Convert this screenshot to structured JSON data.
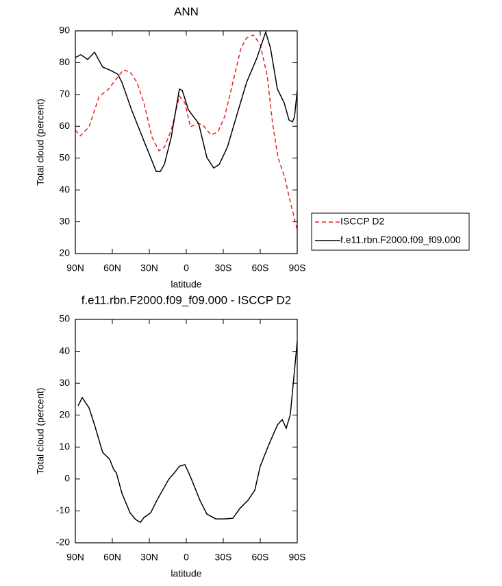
{
  "chart_data": [
    {
      "type": "line",
      "title": "ANN",
      "xlabel": "latitude",
      "ylabel": "Total cloud (percent)",
      "xlim": [
        90,
        -90
      ],
      "ylim": [
        20,
        90
      ],
      "xticks": [
        {
          "value": 90,
          "label": "90N"
        },
        {
          "value": 60,
          "label": "60N"
        },
        {
          "value": 30,
          "label": "30N"
        },
        0,
        {
          "value": -30,
          "label": "30S"
        },
        {
          "value": -60,
          "label": "60S"
        },
        {
          "value": -90,
          "label": "90S"
        }
      ],
      "yticks": [
        20,
        30,
        40,
        50,
        60,
        70,
        80,
        90
      ],
      "legend": "outside-right",
      "series": [
        {
          "name": "ISCCP D2",
          "color": "#e8201e",
          "line_style": "dashed",
          "x": [
            90,
            86.1,
            78.9,
            70.6,
            63.9,
            56.7,
            51.1,
            45.6,
            40,
            34.4,
            27.8,
            22.2,
            17.8,
            12.2,
            5.6,
            1.1,
            -3.3,
            -8.9,
            -13.3,
            -20,
            -25.6,
            -31.1,
            -37.8,
            -44.4,
            -48.9,
            -54.4,
            -60,
            -65.6,
            -70,
            -74.4,
            -80,
            -84.4,
            -90
          ],
          "values": [
            58.8,
            57,
            59.8,
            69.5,
            71.3,
            74.9,
            77.7,
            77.1,
            73.8,
            67.4,
            56.6,
            52.3,
            53.4,
            58.8,
            69.5,
            67.4,
            59.8,
            60.9,
            60.5,
            57.3,
            58.2,
            63,
            73.8,
            84.6,
            87.8,
            88.7,
            85.7,
            76,
            60.9,
            50.2,
            43.7,
            36.2,
            27.5
          ]
        },
        {
          "name": "f.e11.rbn.F2000.f09_f09.000",
          "color": "#000000",
          "line_style": "solid",
          "x": [
            90,
            85.6,
            80,
            74.4,
            67.8,
            62.2,
            55.6,
            52.2,
            44.4,
            35.6,
            28.9,
            24.4,
            21.1,
            17.8,
            12.2,
            5.6,
            3.3,
            -1.7,
            -10,
            -16.7,
            -22.2,
            -26.7,
            -33.3,
            -40.6,
            -48.9,
            -57.2,
            -62.8,
            -64.4,
            -68.3,
            -73.9,
            -79.4,
            -83.3,
            -86.1,
            -87.8,
            -90
          ],
          "values": [
            81.6,
            82.5,
            81,
            83.3,
            78.6,
            77.7,
            76.4,
            73.8,
            65.2,
            56.6,
            50.2,
            45.8,
            45.8,
            48,
            56.6,
            71.7,
            71.3,
            65.2,
            60.9,
            50.2,
            46.9,
            48,
            53.4,
            63,
            73.8,
            81.4,
            87.8,
            89.6,
            84.6,
            71.7,
            67.4,
            62,
            61.4,
            63,
            71.3
          ]
        }
      ]
    },
    {
      "type": "line",
      "title": "f.e11.rbn.F2000.f09_f09.000 - ISCCP D2",
      "xlabel": "latitude",
      "ylabel": "Total cloud (percent)",
      "xlim": [
        90,
        -90
      ],
      "ylim": [
        -20,
        50
      ],
      "xticks": [
        {
          "value": 90,
          "label": "90N"
        },
        {
          "value": 60,
          "label": "60N"
        },
        {
          "value": 30,
          "label": "30N"
        },
        0,
        {
          "value": -30,
          "label": "30S"
        },
        {
          "value": -60,
          "label": "60S"
        },
        {
          "value": -90,
          "label": "90S"
        }
      ],
      "yticks": [
        -20,
        -10,
        0,
        10,
        20,
        30,
        40,
        50
      ],
      "series": [
        {
          "color": "#000000",
          "line_style": "solid",
          "x": [
            87.8,
            84.4,
            78.9,
            74.4,
            67.8,
            62.2,
            58.9,
            56.7,
            52.2,
            45.6,
            41.1,
            37.2,
            34.4,
            28.9,
            23.3,
            14.4,
            8.9,
            5.6,
            1.1,
            -3.3,
            -11.1,
            -16.7,
            -23.9,
            -31.1,
            -37.8,
            -43.3,
            -50,
            -55.6,
            -60,
            -66.7,
            -73.9,
            -77.8,
            -81.1,
            -84.4,
            -90
          ],
          "values": [
            22.9,
            25.5,
            22.3,
            16.9,
            8.3,
            6.2,
            3,
            1.9,
            -4.5,
            -10.6,
            -12.7,
            -13.6,
            -12.1,
            -10.6,
            -6.3,
            -0.2,
            2.3,
            4,
            4.5,
            0.8,
            -6.7,
            -11,
            -12.5,
            -12.5,
            -12.3,
            -9.3,
            -6.7,
            -3.5,
            4,
            10.5,
            16.9,
            18.6,
            15.9,
            20.2,
            43.1
          ]
        }
      ]
    }
  ]
}
